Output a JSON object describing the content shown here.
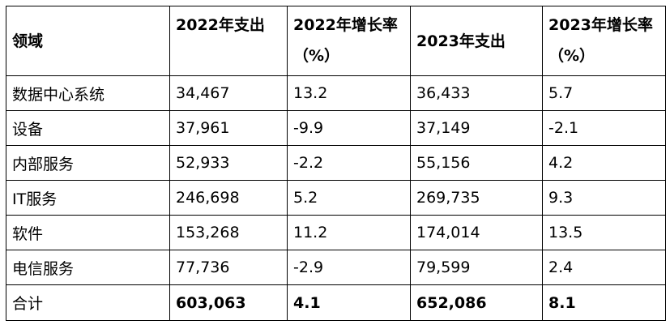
{
  "table": {
    "headers": {
      "field": "领域",
      "spend_2022": "2022年支出",
      "growth_2022": "2022年增长率（%）",
      "spend_2023": "2023年支出",
      "growth_2023": "2023年增长率（%）"
    },
    "rows": [
      {
        "field": "数据中心系统",
        "spend_2022": "34,467",
        "growth_2022": "13.2",
        "spend_2023": "36,433",
        "growth_2023": "5.7"
      },
      {
        "field": "设备",
        "spend_2022": "37,961",
        "growth_2022": "-9.9",
        "spend_2023": "37,149",
        "growth_2023": "-2.1"
      },
      {
        "field": "内部服务",
        "spend_2022": "52,933",
        "growth_2022": "-2.2",
        "spend_2023": "55,156",
        "growth_2023": "4.2"
      },
      {
        "field": "IT服务",
        "spend_2022": "246,698",
        "growth_2022": "5.2",
        "spend_2023": "269,735",
        "growth_2023": "9.3"
      },
      {
        "field": "软件",
        "spend_2022": "153,268",
        "growth_2022": "11.2",
        "spend_2023": "174,014",
        "growth_2023": "13.5"
      },
      {
        "field": "电信服务",
        "spend_2022": "77,736",
        "growth_2022": "-2.9",
        "spend_2023": "79,599",
        "growth_2023": "2.4"
      }
    ],
    "total": {
      "field": "合计",
      "spend_2022": "603,063",
      "growth_2022": "4.1",
      "spend_2023": "652,086",
      "growth_2023": "8.1"
    }
  }
}
